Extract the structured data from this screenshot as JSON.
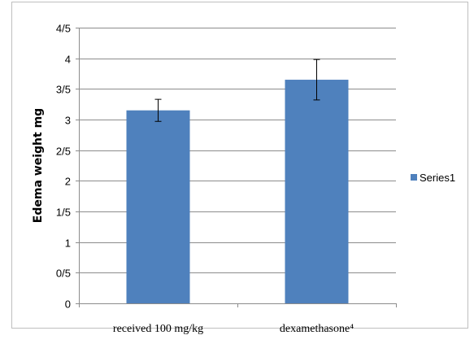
{
  "chart_data": {
    "type": "bar",
    "categories": [
      "received 100 mg/kg",
      "dexamethasone⁴"
    ],
    "series": [
      {
        "name": "Series1",
        "values": [
          3.15,
          3.65
        ],
        "error": [
          0.18,
          0.33
        ]
      }
    ],
    "ylabel": "Edema weight mg",
    "xlabel": "",
    "title": "",
    "ylim": [
      0,
      4.5
    ],
    "yticks": [
      0,
      0.5,
      1,
      1.5,
      2,
      2.5,
      3,
      3.5,
      4,
      4.5
    ],
    "ytick_labels": [
      "0",
      "0/5",
      "1",
      "1/5",
      "2",
      "2/5",
      "3",
      "3/5",
      "4",
      "4/5"
    ],
    "grid": true,
    "legend_position": "right",
    "bar_color": "#4f81bd"
  }
}
